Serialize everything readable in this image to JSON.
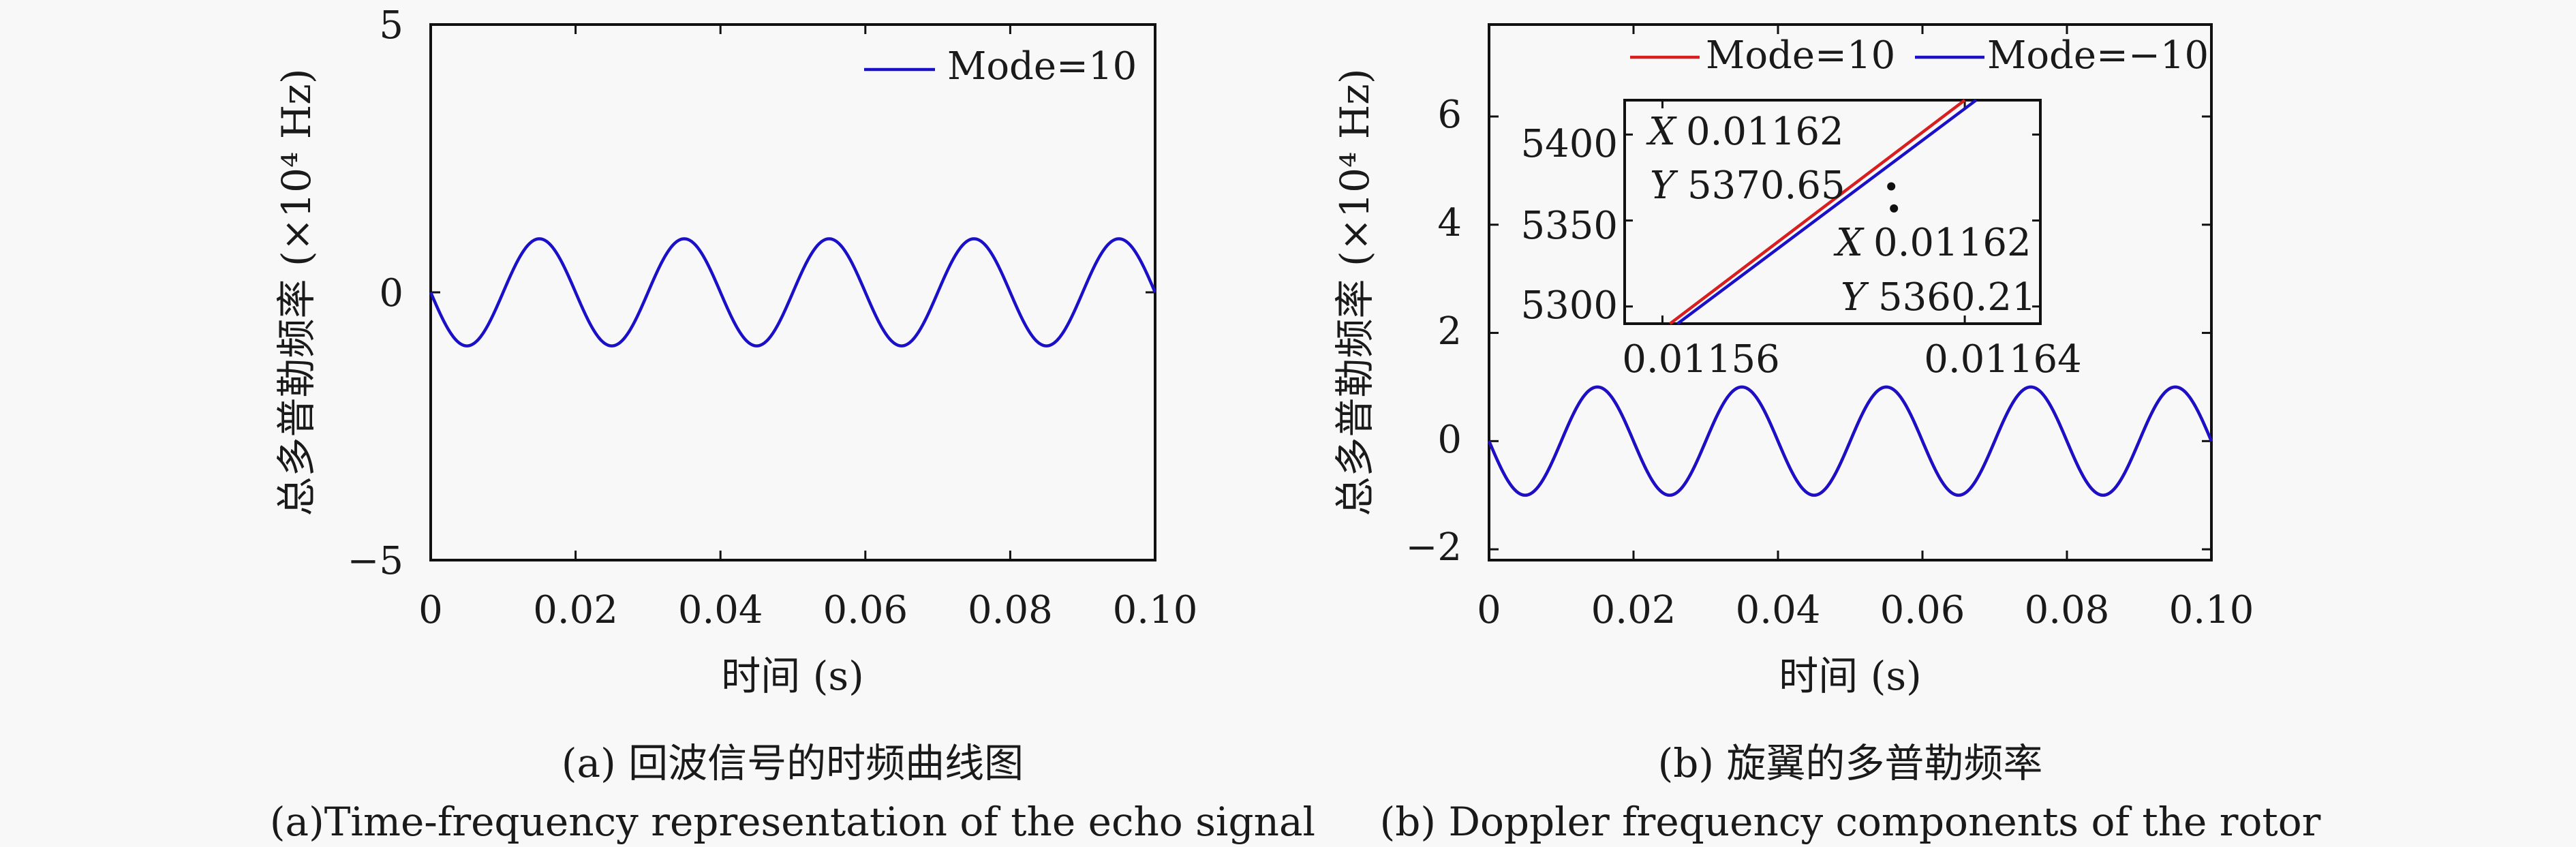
{
  "chart_data": [
    {
      "type": "line",
      "panel_id": "a",
      "title": "",
      "xlabel": "时间 (s)",
      "ylabel": "总多普勒频率 (×10⁴ Hz)",
      "xlim": [
        0,
        0.1
      ],
      "ylim": [
        -5,
        5
      ],
      "x_ticks": [
        0,
        0.02,
        0.04,
        0.06,
        0.08,
        0.1
      ],
      "x_tick_labels": [
        "0",
        "0.02",
        "0.04",
        "0.06",
        "0.08",
        "0.10"
      ],
      "y_ticks": [
        -5,
        0,
        5
      ],
      "y_tick_labels": [
        "−5",
        "0",
        "5"
      ],
      "grid": false,
      "legend": "top-right",
      "series": [
        {
          "name": "Mode=10",
          "color": "#1a10c8",
          "x": [
            0,
            0.005,
            0.01,
            0.015,
            0.02,
            0.025,
            0.03,
            0.035,
            0.04,
            0.045,
            0.05,
            0.055,
            0.06,
            0.065,
            0.07,
            0.075,
            0.08,
            0.085,
            0.09,
            0.095,
            0.1
          ],
          "y": [
            0,
            -1,
            0,
            1,
            0,
            -1,
            0,
            1,
            0,
            -1,
            0,
            1,
            0,
            -1,
            0,
            1,
            0,
            -1,
            0,
            1,
            0
          ]
        }
      ],
      "caption_cn": "(a) 回波信号的时频曲线图",
      "caption_en": "(a)Time-frequency representation of the echo signal"
    },
    {
      "type": "line",
      "panel_id": "b",
      "title": "",
      "xlabel": "时间 (s)",
      "ylabel": "总多普勒频率 (×10⁴ Hz)",
      "xlim": [
        0,
        0.1
      ],
      "ylim": [
        -2.2,
        7.7
      ],
      "x_ticks": [
        0,
        0.02,
        0.04,
        0.06,
        0.08,
        0.1
      ],
      "x_tick_labels": [
        "0",
        "0.02",
        "0.04",
        "0.06",
        "0.08",
        "0.10"
      ],
      "y_ticks": [
        -2,
        0,
        2,
        4,
        6
      ],
      "y_tick_labels": [
        "−2",
        "0",
        "2",
        "4",
        "6"
      ],
      "grid": false,
      "legend": "top",
      "series": [
        {
          "name": "Mode=10",
          "color": "#d81e1e",
          "x": [
            0,
            0.005,
            0.01,
            0.015,
            0.02,
            0.025,
            0.03,
            0.035,
            0.04,
            0.045,
            0.05,
            0.055,
            0.06,
            0.065,
            0.07,
            0.075,
            0.08,
            0.085,
            0.09,
            0.095,
            0.1
          ],
          "y": [
            0,
            -1,
            0,
            1,
            0,
            -1,
            0,
            1,
            0,
            -1,
            0,
            1,
            0,
            -1,
            0,
            1,
            0,
            -1,
            0,
            1,
            0
          ]
        },
        {
          "name": "Mode=−10",
          "color": "#1a10c8",
          "x": [
            0,
            0.005,
            0.01,
            0.015,
            0.02,
            0.025,
            0.03,
            0.035,
            0.04,
            0.045,
            0.05,
            0.055,
            0.06,
            0.065,
            0.07,
            0.075,
            0.08,
            0.085,
            0.09,
            0.095,
            0.1
          ],
          "y": [
            0,
            -1,
            0,
            1,
            0,
            -1,
            0,
            1,
            0,
            -1,
            0,
            1,
            0,
            -1,
            0,
            1,
            0,
            -1,
            0,
            1,
            0
          ]
        }
      ],
      "inset": {
        "xlim": [
          0.01155,
          0.01166
        ],
        "ylim": [
          5290,
          5420
        ],
        "x_ticks": [
          0.01156,
          0.01164
        ],
        "x_tick_labels": [
          "0.01156",
          "0.01164"
        ],
        "y_ticks": [
          5300,
          5350,
          5400
        ],
        "y_tick_labels": [
          "5300",
          "5350",
          "5400"
        ],
        "series": [
          {
            "name": "Mode=10",
            "color": "#d81e1e",
            "x": [
              0.011562,
              0.01164
            ],
            "y": [
              5287,
              5429
            ]
          },
          {
            "name": "Mode=−10",
            "color": "#1a10c8",
            "x": [
              0.011564,
              0.011643
            ],
            "y": [
              5287,
              5429
            ]
          }
        ],
        "datatips": [
          {
            "x_label": "X",
            "x_value": "0.01162",
            "y_label": "Y",
            "y_value": "5370.65",
            "x": 0.01162,
            "y": 5370.65
          },
          {
            "x_label": "X",
            "x_value": "0.01162",
            "y_label": "Y",
            "y_value": "5360.21",
            "x": 0.01162,
            "y": 5360.21
          }
        ]
      },
      "caption_cn": "(b) 旋翼的多普勒频率",
      "caption_en": "(b) Doppler frequency components of the rotor"
    }
  ]
}
